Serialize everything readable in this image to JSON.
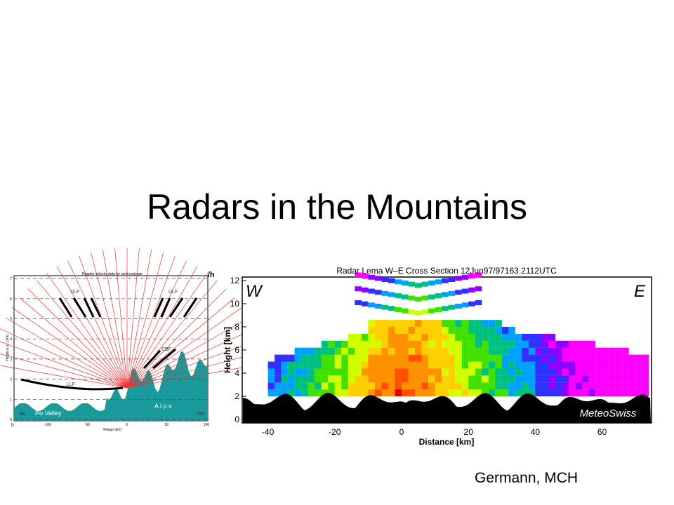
{
  "title": "Radars in the Mountains",
  "credit": "Germann, MCH",
  "left_figure": {
    "title": "Doppler velocity data for wind estimate",
    "x_label": "Range [km]",
    "y_label": "Height a.s.l. [km]",
    "xticks": [
      -100,
      -50,
      0,
      50,
      100
    ],
    "yticks": [
      0,
      1,
      2,
      3,
      4,
      5,
      6,
      7
    ],
    "labels": [
      "ULF",
      "ULF",
      "CBF",
      "LLF",
      "Po Valley",
      "A l p s",
      "SE",
      "NW",
      "b"
    ],
    "cut_label": "/h"
  },
  "right_figure": {
    "title": "Radar Lema  W–E Cross Section 12Jun97/97163 2112UTC",
    "x_label": "Distance [km]",
    "y_label": "Height [km]",
    "xticks": [
      -40,
      -20,
      0,
      20,
      40,
      60
    ],
    "yticks": [
      0,
      2,
      4,
      6,
      8,
      10,
      12
    ],
    "west": "W",
    "east": "E",
    "logo": "MeteoSwiss"
  }
}
